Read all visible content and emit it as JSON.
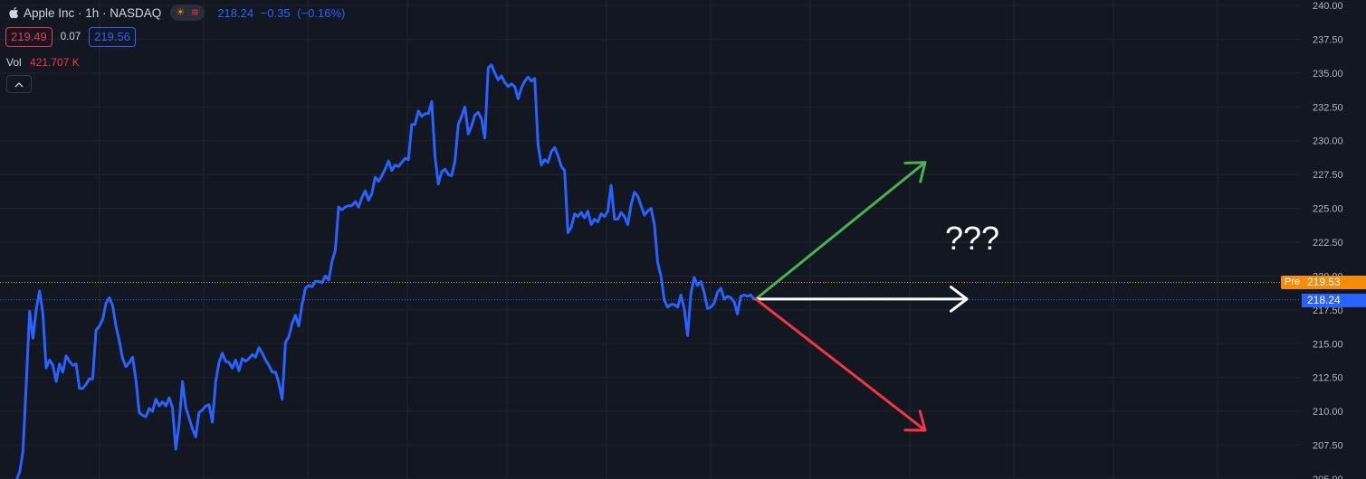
{
  "header": {
    "title": "Apple Inc · 1h · NASDAQ",
    "last_price": "218.24",
    "change": "−0.35",
    "change_pct": "(−0.16%)",
    "icons": [
      "sun-icon",
      "wave-icon"
    ]
  },
  "order_buttons": {
    "sell_price": "219.49",
    "spread": "0.07",
    "buy_price": "219.56"
  },
  "volume": {
    "label": "Vol",
    "value": "421.707 K"
  },
  "price_axis": {
    "ticks": [
      "240.00",
      "237.50",
      "235.00",
      "232.50",
      "230.00",
      "227.50",
      "225.00",
      "222.50",
      "220.00",
      "217.50",
      "215.00",
      "212.50",
      "210.00",
      "207.50",
      "205.00"
    ]
  },
  "price_tags": {
    "pre_label": "Pre",
    "pre_price": "219.53",
    "last_price": "218.24"
  },
  "annotation": {
    "text": "???"
  },
  "colors": {
    "background": "#131722",
    "line": "#2962ff",
    "up": "#4caf50",
    "down": "#f23645",
    "pre": "#f68d0a",
    "grid": "#1f2430"
  },
  "chart_data": {
    "type": "line",
    "ylim": [
      205,
      240
    ],
    "series": [
      {
        "values": [
          204.9,
          205.5,
          207.0,
          212.0,
          217.4,
          215.4,
          217.5,
          218.9,
          217.2,
          213.2,
          213.8,
          213.4,
          212.2,
          213.5,
          212.9,
          214.1,
          213.7,
          213.4,
          213.5,
          211.7,
          211.7,
          212.0,
          212.4,
          212.4,
          216.0,
          216.3,
          216.8,
          218.0,
          218.4,
          217.8,
          216.3,
          215.2,
          213.9,
          213.3,
          213.6,
          214.0,
          212.3,
          209.9,
          209.7,
          209.6,
          210.2,
          210.0,
          210.9,
          210.4,
          210.7,
          210.4,
          211.0,
          210.3,
          207.2,
          209.1,
          212.2,
          210.3,
          209.5,
          208.7,
          208.1,
          209.9,
          210.1,
          210.4,
          210.5,
          209.2,
          212.2,
          213.6,
          214.3,
          213.7,
          213.6,
          213.2,
          213.8,
          213.0,
          213.9,
          213.7,
          213.9,
          214.2,
          214.0,
          214.7,
          214.3,
          213.8,
          213.4,
          212.9,
          212.9,
          212.1,
          210.9,
          215.1,
          215.5,
          216.5,
          217.1,
          216.3,
          217.9,
          219.1,
          219.3,
          219.2,
          219.6,
          219.6,
          219.5,
          220.0,
          219.7,
          221.1,
          221.9,
          225.1,
          224.9,
          225.1,
          225.2,
          225.2,
          225.5,
          225.1,
          225.8,
          226.3,
          225.6,
          226.1,
          227.3,
          227.0,
          227.4,
          227.9,
          228.5,
          227.8,
          228.2,
          228.1,
          228.4,
          228.7,
          228.6,
          231.2,
          231.2,
          232.2,
          231.8,
          232.0,
          232.0,
          232.9,
          228.8,
          226.8,
          227.7,
          227.9,
          227.5,
          227.4,
          228.5,
          231.2,
          231.8,
          232.5,
          230.5,
          231.1,
          231.9,
          232.1,
          231.6,
          230.2,
          235.4,
          235.6,
          235.0,
          234.5,
          234.8,
          234.3,
          234.0,
          234.2,
          234.0,
          233.1,
          233.9,
          234.4,
          234.7,
          234.4,
          234.6,
          229.7,
          228.2,
          228.6,
          228.4,
          229.2,
          229.5,
          228.9,
          228.1,
          227.8,
          223.2,
          223.6,
          224.6,
          224.4,
          224.7,
          224.3,
          224.8,
          223.8,
          224.2,
          224.0,
          224.6,
          224.4,
          224.8,
          226.7,
          224.2,
          224.2,
          224.7,
          224.4,
          223.8,
          225.3,
          226.2,
          225.9,
          225.2,
          224.5,
          224.8,
          225.0,
          223.8,
          221.0,
          220.0,
          218.2,
          217.7,
          217.9,
          217.9,
          217.7,
          218.6,
          217.6,
          215.6,
          218.7,
          219.9,
          219.3,
          219.6,
          218.8,
          217.6,
          217.7,
          218.0,
          218.8,
          219.1,
          218.3,
          218.5,
          218.4,
          218.1,
          217.2,
          218.5,
          218.6,
          218.5,
          218.6,
          218.3
        ]
      }
    ],
    "arrows": [
      {
        "direction": "up",
        "from": 218.3,
        "to": 228.4
      },
      {
        "direction": "flat",
        "from": 218.3,
        "to": 218.3
      },
      {
        "direction": "down",
        "from": 218.3,
        "to": 208.6
      }
    ]
  }
}
